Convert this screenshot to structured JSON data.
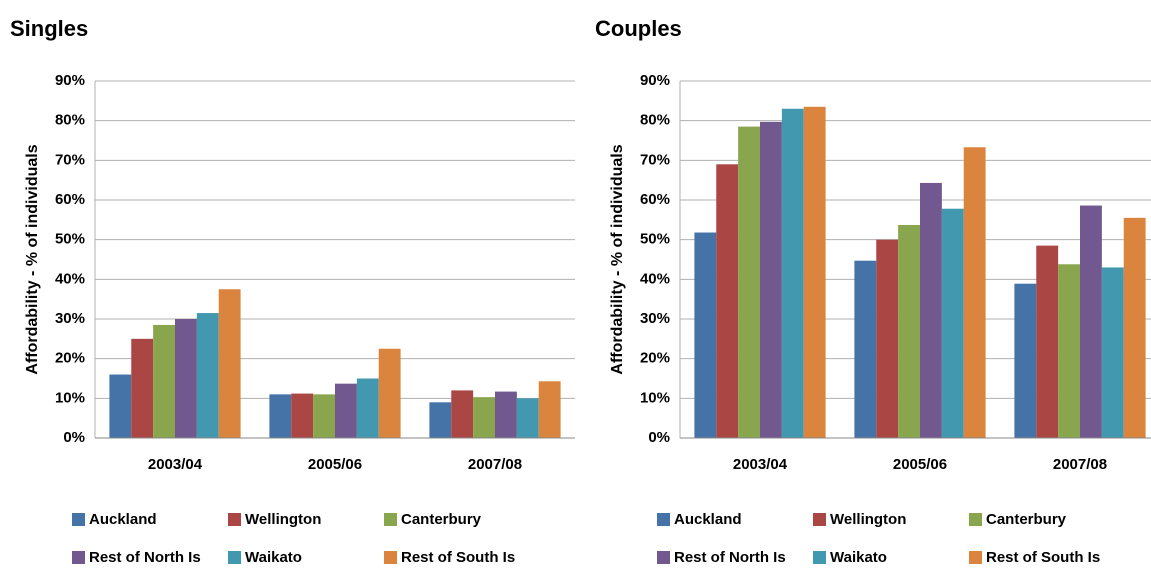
{
  "chart_data": [
    {
      "type": "bar",
      "title": "Singles",
      "y_label": "Affordability - % of individuals",
      "categories": [
        "2003/04",
        "2005/06",
        "2007/08"
      ],
      "series": [
        {
          "name": "Auckland",
          "color": "#4572a7",
          "values": [
            16,
            11,
            9
          ]
        },
        {
          "name": "Wellington",
          "color": "#aa4643",
          "values": [
            25,
            11.2,
            12
          ]
        },
        {
          "name": "Canterbury",
          "color": "#89a54e",
          "values": [
            28.5,
            11,
            10.3
          ]
        },
        {
          "name": "Rest of North Is",
          "color": "#71588f",
          "values": [
            30,
            13.7,
            11.7
          ]
        },
        {
          "name": "Waikato",
          "color": "#4198af",
          "values": [
            31.5,
            15,
            10
          ]
        },
        {
          "name": "Rest of South Is",
          "color": "#db843d",
          "values": [
            37.5,
            22.5,
            14.3
          ]
        }
      ],
      "ylim": [
        0,
        90
      ],
      "yticks": [
        {
          "value": 0,
          "label": "0%"
        },
        {
          "value": 10,
          "label": "10%"
        },
        {
          "value": 20,
          "label": "20%"
        },
        {
          "value": 30,
          "label": "30%"
        },
        {
          "value": 40,
          "label": "40%"
        },
        {
          "value": 50,
          "label": "50%"
        },
        {
          "value": 60,
          "label": "60%"
        },
        {
          "value": 70,
          "label": "70%"
        },
        {
          "value": 80,
          "label": "80%"
        },
        {
          "value": 90,
          "label": "90%"
        }
      ],
      "grid": true,
      "legend": "bottom"
    },
    {
      "type": "bar",
      "title": "Couples",
      "y_label": "Affordability - % of individuals",
      "categories": [
        "2003/04",
        "2005/06",
        "2007/08"
      ],
      "series": [
        {
          "name": "Auckland",
          "color": "#4572a7",
          "values": [
            51.8,
            44.7,
            38.9
          ]
        },
        {
          "name": "Wellington",
          "color": "#aa4643",
          "values": [
            69,
            50,
            48.5
          ]
        },
        {
          "name": "Canterbury",
          "color": "#89a54e",
          "values": [
            78.5,
            53.7,
            43.8
          ]
        },
        {
          "name": "Rest of North Is",
          "color": "#71588f",
          "values": [
            79.7,
            64.3,
            58.6
          ]
        },
        {
          "name": "Waikato",
          "color": "#4198af",
          "values": [
            83,
            57.8,
            43
          ]
        },
        {
          "name": "Rest of South Is",
          "color": "#db843d",
          "values": [
            83.5,
            73.3,
            55.5
          ]
        }
      ],
      "ylim": [
        0,
        90
      ],
      "yticks": [
        {
          "value": 0,
          "label": "0%"
        },
        {
          "value": 10,
          "label": "10%"
        },
        {
          "value": 20,
          "label": "20%"
        },
        {
          "value": 30,
          "label": "30%"
        },
        {
          "value": 40,
          "label": "40%"
        },
        {
          "value": 50,
          "label": "50%"
        },
        {
          "value": 60,
          "label": "60%"
        },
        {
          "value": 70,
          "label": "70%"
        },
        {
          "value": 80,
          "label": "80%"
        },
        {
          "value": 90,
          "label": "90%"
        }
      ],
      "grid": true,
      "legend": "bottom"
    }
  ]
}
